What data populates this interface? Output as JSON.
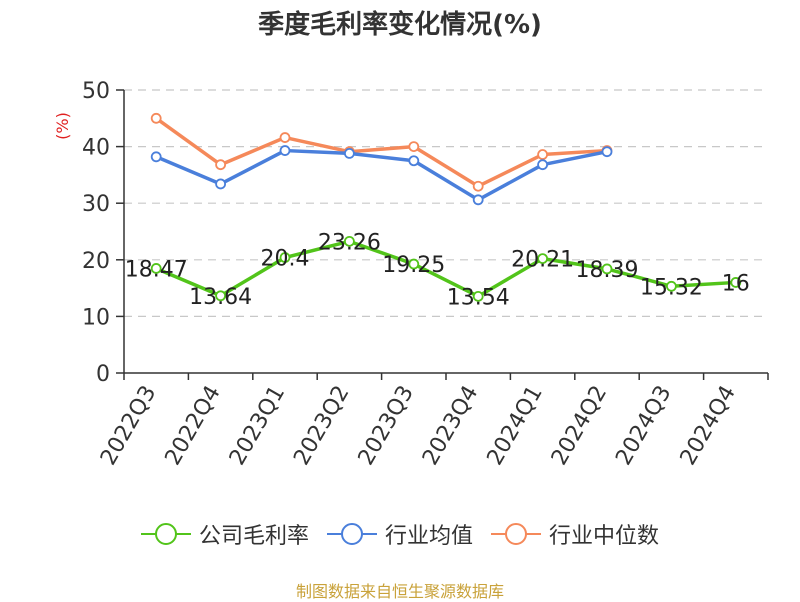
{
  "chart_data": {
    "type": "line",
    "title": "季度毛利率变化情况(%)",
    "ylabel": "(%)",
    "xlabel": "",
    "ylim": [
      0,
      50
    ],
    "yticks": [
      0,
      10,
      20,
      30,
      40,
      50
    ],
    "grid": true,
    "legend_position": "bottom",
    "categories": [
      "2022Q3",
      "2022Q4",
      "2023Q1",
      "2023Q2",
      "2023Q3",
      "2023Q4",
      "2024Q1",
      "2024Q2",
      "2024Q3",
      "2024Q4"
    ],
    "series": [
      {
        "name": "公司毛利率",
        "color": "#52c41a",
        "values": [
          18.47,
          13.64,
          20.4,
          23.26,
          19.25,
          13.54,
          20.21,
          18.39,
          15.32,
          16
        ],
        "labels": [
          "18.47",
          "13.64",
          "20.4",
          "23.26",
          "19.25",
          "13.54",
          "20.21",
          "18.39",
          "15.32",
          "16"
        ]
      },
      {
        "name": "行业均值",
        "color": "#4a7fdb",
        "values": [
          38.2,
          33.4,
          39.3,
          38.8,
          37.5,
          30.6,
          36.8,
          39.1,
          null,
          null
        ]
      },
      {
        "name": "行业中位数",
        "color": "#f5895a",
        "values": [
          45,
          36.8,
          41.6,
          39.1,
          40,
          33,
          38.6,
          39.3,
          null,
          null
        ]
      }
    ]
  },
  "footer": {
    "source": "制图数据来自恒生聚源数据库"
  }
}
